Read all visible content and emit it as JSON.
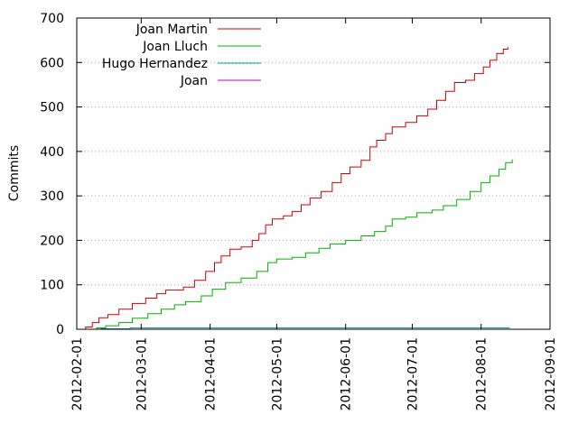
{
  "chart_data": {
    "type": "line",
    "title": "",
    "xlabel": "",
    "ylabel": "Commits",
    "ylim": [
      0,
      700
    ],
    "xlim": [
      "2012-02-01",
      "2012-09-01"
    ],
    "y_ticks": [
      "0",
      "100",
      "200",
      "300",
      "400",
      "500",
      "600",
      "700"
    ],
    "x_ticks": [
      "2012-02-01",
      "2012-03-01",
      "2012-04-01",
      "2012-05-01",
      "2012-06-01",
      "2012-07-01",
      "2012-08-01",
      "2012-09-01"
    ],
    "grid": "horizontal-dotted",
    "legend_position": "top-left",
    "step_style": "steps",
    "series": [
      {
        "name": "Joan Martin",
        "color": "#d00000",
        "points": [
          [
            "2012-02-01",
            0
          ],
          [
            "2012-02-05",
            5
          ],
          [
            "2012-02-08",
            15
          ],
          [
            "2012-02-11",
            26
          ],
          [
            "2012-02-15",
            33
          ],
          [
            "2012-02-20",
            45
          ],
          [
            "2012-02-26",
            58
          ],
          [
            "2012-03-03",
            70
          ],
          [
            "2012-03-08",
            80
          ],
          [
            "2012-03-12",
            88
          ],
          [
            "2012-03-20",
            95
          ],
          [
            "2012-03-25",
            110
          ],
          [
            "2012-03-30",
            130
          ],
          [
            "2012-04-03",
            150
          ],
          [
            "2012-04-06",
            165
          ],
          [
            "2012-04-10",
            180
          ],
          [
            "2012-04-15",
            185
          ],
          [
            "2012-04-20",
            200
          ],
          [
            "2012-04-23",
            215
          ],
          [
            "2012-04-26",
            235
          ],
          [
            "2012-04-29",
            248
          ],
          [
            "2012-05-04",
            255
          ],
          [
            "2012-05-08",
            265
          ],
          [
            "2012-05-12",
            280
          ],
          [
            "2012-05-16",
            295
          ],
          [
            "2012-05-21",
            310
          ],
          [
            "2012-05-26",
            330
          ],
          [
            "2012-05-30",
            350
          ],
          [
            "2012-06-03",
            365
          ],
          [
            "2012-06-08",
            380
          ],
          [
            "2012-06-12",
            410
          ],
          [
            "2012-06-15",
            425
          ],
          [
            "2012-06-19",
            440
          ],
          [
            "2012-06-22",
            455
          ],
          [
            "2012-06-28",
            465
          ],
          [
            "2012-07-03",
            480
          ],
          [
            "2012-07-08",
            495
          ],
          [
            "2012-07-12",
            515
          ],
          [
            "2012-07-16",
            535
          ],
          [
            "2012-07-20",
            555
          ],
          [
            "2012-07-25",
            560
          ],
          [
            "2012-07-29",
            575
          ],
          [
            "2012-08-02",
            590
          ],
          [
            "2012-08-05",
            605
          ],
          [
            "2012-08-08",
            620
          ],
          [
            "2012-08-11",
            630
          ],
          [
            "2012-08-13",
            635
          ]
        ]
      },
      {
        "name": "Joan Lluch",
        "color": "#00b000",
        "points": [
          [
            "2012-02-01",
            0
          ],
          [
            "2012-02-07",
            0
          ],
          [
            "2012-02-10",
            3
          ],
          [
            "2012-02-14",
            8
          ],
          [
            "2012-02-20",
            15
          ],
          [
            "2012-02-26",
            25
          ],
          [
            "2012-03-04",
            35
          ],
          [
            "2012-03-10",
            45
          ],
          [
            "2012-03-16",
            55
          ],
          [
            "2012-03-21",
            62
          ],
          [
            "2012-03-28",
            75
          ],
          [
            "2012-04-02",
            90
          ],
          [
            "2012-04-08",
            105
          ],
          [
            "2012-04-15",
            115
          ],
          [
            "2012-04-22",
            130
          ],
          [
            "2012-04-27",
            150
          ],
          [
            "2012-05-01",
            158
          ],
          [
            "2012-05-08",
            162
          ],
          [
            "2012-05-14",
            172
          ],
          [
            "2012-05-20",
            182
          ],
          [
            "2012-05-25",
            192
          ],
          [
            "2012-06-01",
            200
          ],
          [
            "2012-06-08",
            210
          ],
          [
            "2012-06-14",
            220
          ],
          [
            "2012-06-19",
            232
          ],
          [
            "2012-06-22",
            248
          ],
          [
            "2012-06-28",
            252
          ],
          [
            "2012-07-03",
            262
          ],
          [
            "2012-07-10",
            268
          ],
          [
            "2012-07-15",
            278
          ],
          [
            "2012-07-21",
            292
          ],
          [
            "2012-07-27",
            310
          ],
          [
            "2012-08-01",
            330
          ],
          [
            "2012-08-05",
            345
          ],
          [
            "2012-08-09",
            360
          ],
          [
            "2012-08-12",
            375
          ],
          [
            "2012-08-15",
            382
          ]
        ]
      },
      {
        "name": "Hugo Hernandez",
        "color": "#00a0c0",
        "points": [
          [
            "2012-02-01",
            0
          ],
          [
            "2012-02-12",
            1
          ],
          [
            "2012-02-25",
            3
          ],
          [
            "2012-08-14",
            3
          ]
        ]
      },
      {
        "name": "Joan",
        "color": "#c000c0",
        "points": [
          [
            "2012-02-01",
            0
          ],
          [
            "2012-08-14",
            1
          ]
        ]
      }
    ]
  }
}
